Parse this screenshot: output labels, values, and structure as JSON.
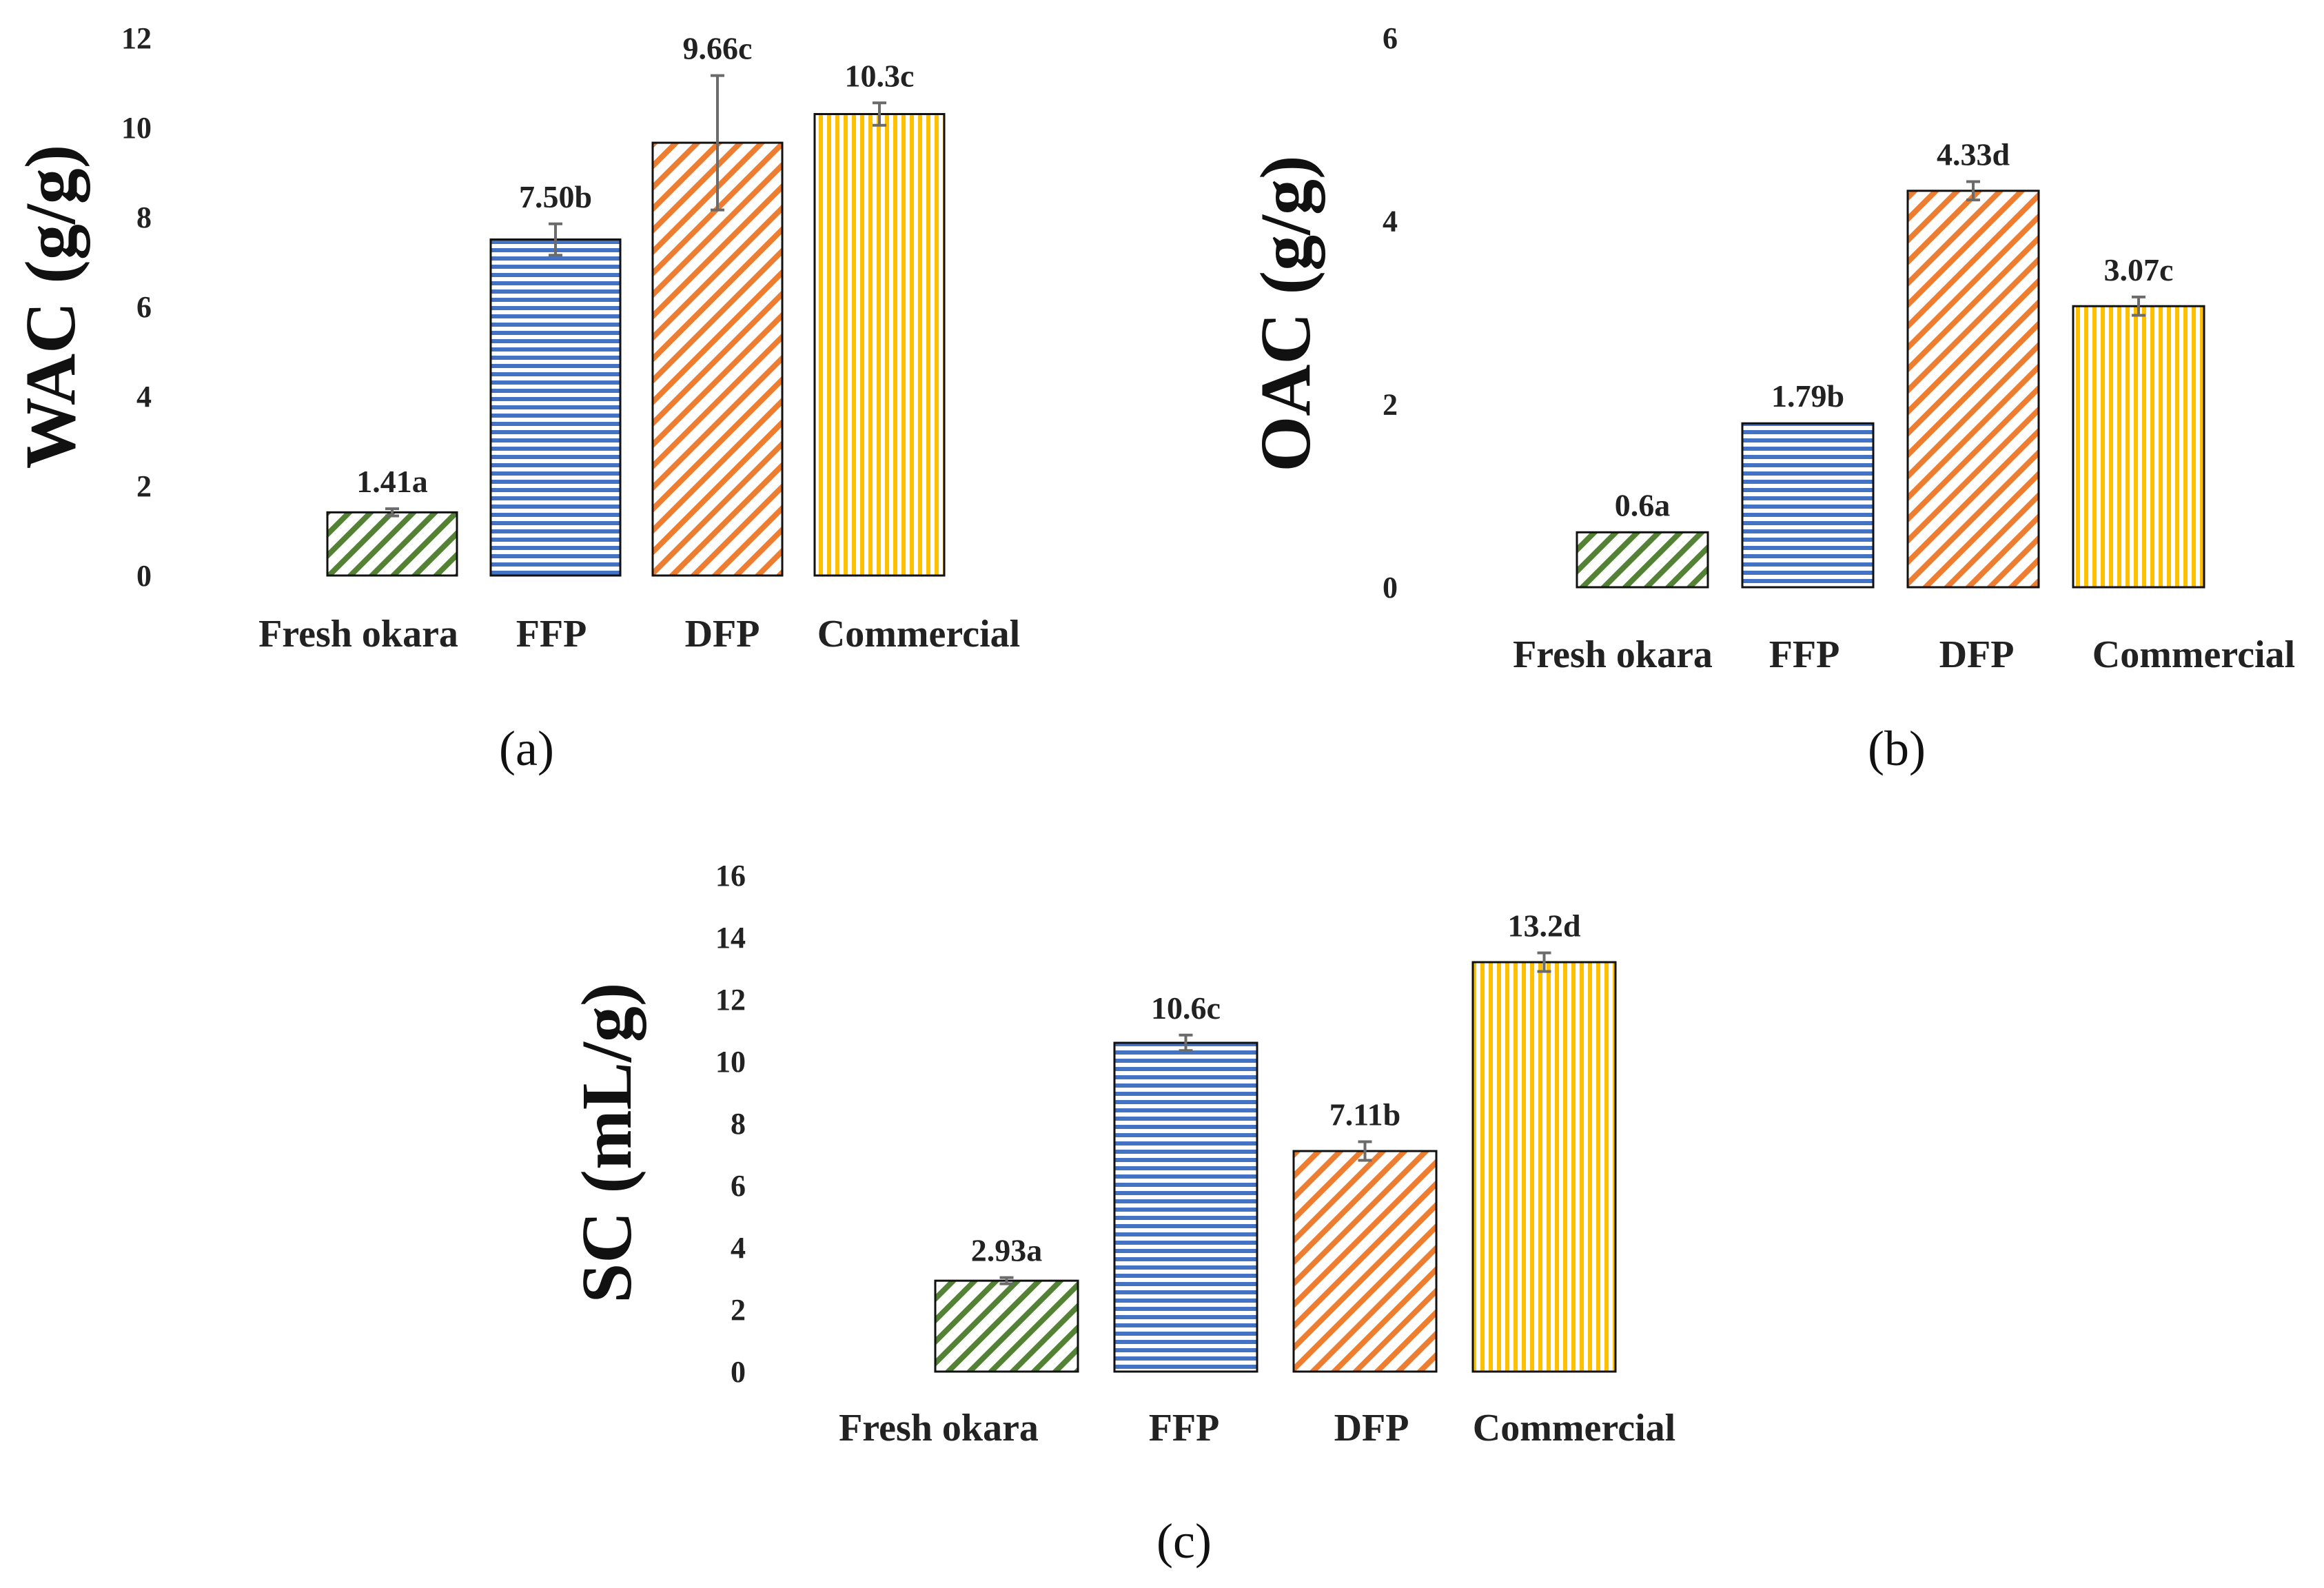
{
  "chart_data": [
    {
      "type": "bar",
      "panel_label": "(a)",
      "title": "",
      "xlabel": "",
      "ylabel": "WAC (g/g)",
      "ylim": [
        0,
        12
      ],
      "yticks": [
        0,
        2,
        4,
        6,
        8,
        10,
        12
      ],
      "categories": [
        "Fresh okara",
        "FFP",
        "DFP",
        "Commercial"
      ],
      "values": [
        1.41,
        7.5,
        9.66,
        10.3
      ],
      "errors": [
        0.08,
        0.35,
        1.5,
        0.25
      ],
      "data_labels": [
        "1.41a",
        "7.50b",
        "9.66c",
        "10.3c"
      ],
      "grid": false
    },
    {
      "type": "bar",
      "panel_label": "(b)",
      "title": "",
      "xlabel": "",
      "ylabel": "OAC (g/g)",
      "ylim": [
        0,
        6
      ],
      "yticks": [
        0,
        2,
        4,
        6
      ],
      "categories": [
        "Fresh okara",
        "FFP",
        "DFP",
        "Commercial"
      ],
      "values": [
        0.6,
        1.79,
        4.33,
        3.07
      ],
      "errors": [
        0.0,
        0.0,
        0.1,
        0.1
      ],
      "data_labels": [
        "0.6a",
        "1.79b",
        "4.33d",
        "3.07c"
      ],
      "grid": false
    },
    {
      "type": "bar",
      "panel_label": "(c)",
      "title": "",
      "xlabel": "",
      "ylabel": "SC (mL/g)",
      "ylim": [
        0,
        16
      ],
      "yticks": [
        0,
        2,
        4,
        6,
        8,
        10,
        12,
        14,
        16
      ],
      "categories": [
        "Fresh okara",
        "FFP",
        "DFP",
        "Commercial"
      ],
      "values": [
        2.93,
        10.6,
        7.11,
        13.2
      ],
      "errors": [
        0.1,
        0.25,
        0.3,
        0.3
      ],
      "data_labels": [
        "2.93a",
        "10.6c",
        "7.11b",
        "13.2d"
      ],
      "grid": false
    }
  ],
  "series_colors": {
    "Fresh okara": "#548235",
    "FFP": "#4472C4",
    "DFP": "#ED7D31",
    "Commercial": "#FFC000"
  },
  "bar_patterns": {
    "Fresh okara": "diagonal-up",
    "FFP": "horizontal",
    "DFP": "diagonal-up",
    "Commercial": "vertical"
  }
}
